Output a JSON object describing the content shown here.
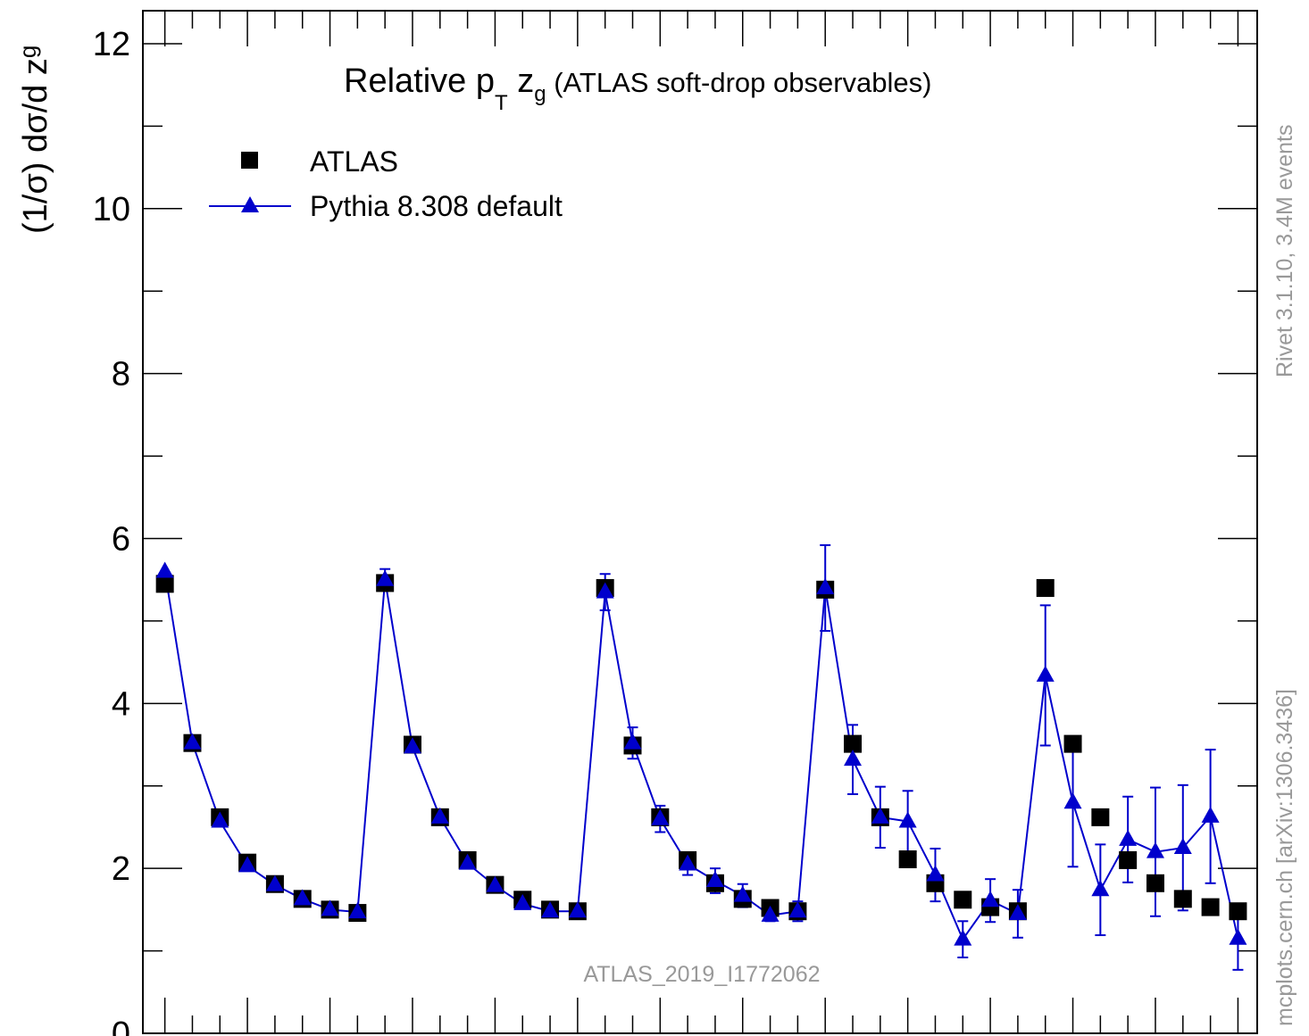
{
  "chart_data": {
    "type": "scatter",
    "title": "Relative p",
    "title_sub": "T",
    "title_z": " z",
    "title_zsub": "g",
    "title_rest": " (ATLAS soft-drop observables)",
    "ylabel": "(1/σ) dσ/d z",
    "ylabel_sub": "g",
    "ylim": [
      0,
      12.4
    ],
    "yticks": [
      0,
      2,
      4,
      6,
      8,
      10,
      12
    ],
    "yticks_minor": [
      1,
      3,
      5,
      7,
      9,
      11
    ],
    "legend_placement": "top-left",
    "x": [
      1,
      2,
      3,
      4,
      5,
      6,
      7,
      8,
      9,
      10,
      11,
      12,
      13,
      14,
      15,
      16,
      17,
      18,
      19,
      20,
      21,
      22,
      23,
      24,
      25,
      26,
      27,
      28,
      29,
      30,
      31,
      32,
      33,
      34,
      35,
      36,
      37,
      38,
      39,
      40
    ],
    "xlim": [
      0.2,
      40.7
    ],
    "series": [
      {
        "name": "ATLAS",
        "marker": "square",
        "color": "#000000",
        "values": [
          5.45,
          3.52,
          2.62,
          2.07,
          1.81,
          1.63,
          1.5,
          1.46,
          5.46,
          3.5,
          2.62,
          2.1,
          1.8,
          1.62,
          1.5,
          1.48,
          5.4,
          3.49,
          2.62,
          2.1,
          1.82,
          1.63,
          1.52,
          1.48,
          5.38,
          3.51,
          2.62,
          2.11,
          1.82,
          1.62,
          1.53,
          1.48,
          5.4,
          3.51,
          2.62,
          2.1,
          1.82,
          1.63,
          1.53,
          1.48
        ]
      },
      {
        "name": "Pythia 8.308 default",
        "marker": "triangle",
        "color": "#0000cc",
        "values": [
          5.6,
          3.52,
          2.57,
          2.03,
          1.8,
          1.63,
          1.5,
          1.47,
          5.5,
          3.47,
          2.62,
          2.06,
          1.79,
          1.57,
          1.48,
          1.48,
          5.35,
          3.52,
          2.6,
          2.05,
          1.85,
          1.67,
          1.43,
          1.48,
          5.4,
          3.32,
          2.62,
          2.57,
          1.92,
          1.14,
          1.61,
          1.45,
          4.34,
          2.8,
          1.74,
          2.35,
          2.2,
          2.25,
          2.63,
          1.15
        ],
        "errors": [
          0.03,
          0.02,
          0.02,
          0.02,
          0.02,
          0.02,
          0.02,
          0.02,
          0.13,
          0.04,
          0.04,
          0.04,
          0.04,
          0.04,
          0.04,
          0.04,
          0.22,
          0.19,
          0.16,
          0.13,
          0.15,
          0.14,
          0.07,
          0.12,
          0.52,
          0.42,
          0.37,
          0.37,
          0.32,
          0.22,
          0.26,
          0.29,
          0.85,
          0.78,
          0.55,
          0.52,
          0.78,
          0.76,
          0.81,
          0.38
        ]
      }
    ],
    "watermark": "ATLAS_2019_I1772062",
    "right_text_top": "Rivet 3.1.10,  3.4M events",
    "right_text_bottom": "mcplots.cern.ch [arXiv:1306.3436]"
  }
}
